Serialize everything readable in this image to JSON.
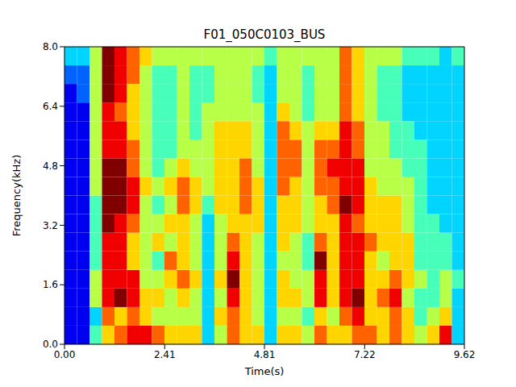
{
  "chart_data": {
    "type": "heatmap",
    "title": "F01_050C0103_BUS",
    "x_label": "Time(s)",
    "y_label": "Frequency(kHz)",
    "xlim": [
      0,
      9.62
    ],
    "xticks": [
      {
        "value": 0,
        "label": "0.00"
      },
      2.41,
      4.81,
      7.22,
      9.62
    ],
    "ylim": [
      0,
      8
    ],
    "yticks": [
      {
        "value": 0,
        "label": "0.0"
      },
      1.6,
      3.2,
      4.8,
      6.4,
      {
        "value": 8,
        "label": "8.0"
      }
    ],
    "zlim": [
      0,
      9
    ],
    "cells": [
      [
        1,
        1,
        1,
        1,
        1,
        1,
        1,
        1,
        1,
        1,
        1,
        1,
        1,
        1,
        2,
        3
      ],
      [
        1,
        1,
        1,
        1,
        1,
        1,
        1,
        1,
        1,
        1,
        1,
        1,
        1,
        2,
        2,
        3
      ],
      [
        4,
        3,
        5,
        5,
        4,
        4,
        4,
        4,
        5,
        5,
        5,
        5,
        5,
        5,
        5,
        5
      ],
      [
        6,
        7,
        8,
        8,
        8,
        8,
        9,
        9,
        9,
        9,
        8,
        8,
        8,
        9,
        9,
        9
      ],
      [
        7,
        6,
        9,
        8,
        8,
        8,
        8,
        9,
        9,
        9,
        8,
        8,
        7,
        8,
        8,
        8
      ],
      [
        8,
        7,
        8,
        8,
        6,
        6,
        7,
        8,
        8,
        7,
        7,
        6,
        6,
        6,
        7,
        7
      ],
      [
        8,
        6,
        6,
        5,
        5,
        5,
        5,
        5,
        6,
        5,
        5,
        5,
        5,
        5,
        5,
        6
      ],
      [
        7,
        5,
        6,
        5,
        4,
        6,
        5,
        4,
        5,
        4,
        4,
        4,
        4,
        4,
        4,
        5
      ],
      [
        6,
        5,
        5,
        6,
        7,
        5,
        6,
        5,
        6,
        5,
        4,
        4,
        4,
        4,
        4,
        5
      ],
      [
        6,
        5,
        6,
        7,
        6,
        6,
        6,
        7,
        7,
        6,
        5,
        5,
        5,
        5,
        5,
        5
      ],
      [
        6,
        5,
        5,
        6,
        5,
        5,
        5,
        6,
        6,
        5,
        5,
        4,
        4,
        4,
        4,
        5
      ],
      [
        3,
        3,
        3,
        3,
        3,
        3,
        3,
        4,
        5,
        5,
        5,
        5,
        5,
        4,
        4,
        5
      ],
      [
        5,
        6,
        5,
        6,
        5,
        5,
        5,
        6,
        6,
        6,
        6,
        6,
        5,
        5,
        5,
        5
      ],
      [
        7,
        7,
        8,
        9,
        8,
        7,
        6,
        6,
        6,
        6,
        6,
        6,
        5,
        5,
        5,
        5
      ],
      [
        6,
        6,
        6,
        6,
        6,
        6,
        6,
        7,
        7,
        7,
        6,
        6,
        5,
        5,
        5,
        5
      ],
      [
        6,
        5,
        5,
        5,
        5,
        5,
        6,
        6,
        6,
        5,
        5,
        5,
        5,
        4,
        4,
        5
      ],
      [
        3,
        3,
        3,
        3,
        3,
        3,
        3,
        3,
        3,
        3,
        3,
        3,
        3,
        3,
        3,
        4
      ],
      [
        6,
        5,
        6,
        6,
        5,
        6,
        6,
        6,
        7,
        7,
        7,
        7,
        6,
        5,
        5,
        5
      ],
      [
        6,
        5,
        6,
        5,
        5,
        5,
        6,
        6,
        6,
        7,
        7,
        6,
        5,
        5,
        5,
        5
      ],
      [
        5,
        4,
        5,
        5,
        4,
        4,
        5,
        5,
        5,
        5,
        5,
        5,
        4,
        4,
        4,
        5
      ],
      [
        7,
        6,
        8,
        8,
        9,
        7,
        6,
        6,
        7,
        7,
        7,
        6,
        5,
        5,
        5,
        5
      ],
      [
        6,
        5,
        6,
        6,
        6,
        6,
        6,
        7,
        7,
        8,
        7,
        6,
        5,
        5,
        5,
        5
      ],
      [
        6,
        7,
        8,
        8,
        8,
        8,
        8,
        9,
        8,
        8,
        8,
        8,
        7,
        7,
        7,
        7
      ],
      [
        7,
        8,
        9,
        8,
        8,
        8,
        7,
        8,
        8,
        8,
        7,
        7,
        6,
        6,
        6,
        6
      ],
      [
        7,
        6,
        6,
        6,
        6,
        7,
        6,
        6,
        6,
        5,
        5,
        5,
        5,
        5,
        5,
        5
      ],
      [
        6,
        6,
        7,
        6,
        5,
        6,
        6,
        6,
        5,
        5,
        5,
        5,
        4,
        4,
        4,
        5
      ],
      [
        7,
        7,
        8,
        7,
        6,
        6,
        6,
        6,
        5,
        5,
        4,
        4,
        4,
        4,
        4,
        5
      ],
      [
        6,
        6,
        5,
        6,
        6,
        6,
        5,
        5,
        5,
        4,
        4,
        4,
        3,
        3,
        3,
        4
      ],
      [
        5,
        4,
        4,
        5,
        4,
        4,
        4,
        4,
        4,
        4,
        4,
        3,
        3,
        3,
        3,
        4
      ],
      [
        6,
        5,
        4,
        4,
        4,
        4,
        4,
        3,
        3,
        3,
        3,
        3,
        3,
        3,
        3,
        4
      ],
      [
        8,
        6,
        5,
        5,
        4,
        4,
        3,
        3,
        3,
        3,
        3,
        3,
        3,
        3,
        3,
        3
      ],
      [
        3,
        3,
        3,
        4,
        3,
        3,
        3,
        3,
        3,
        3,
        3,
        3,
        3,
        3,
        3,
        4
      ]
    ]
  }
}
